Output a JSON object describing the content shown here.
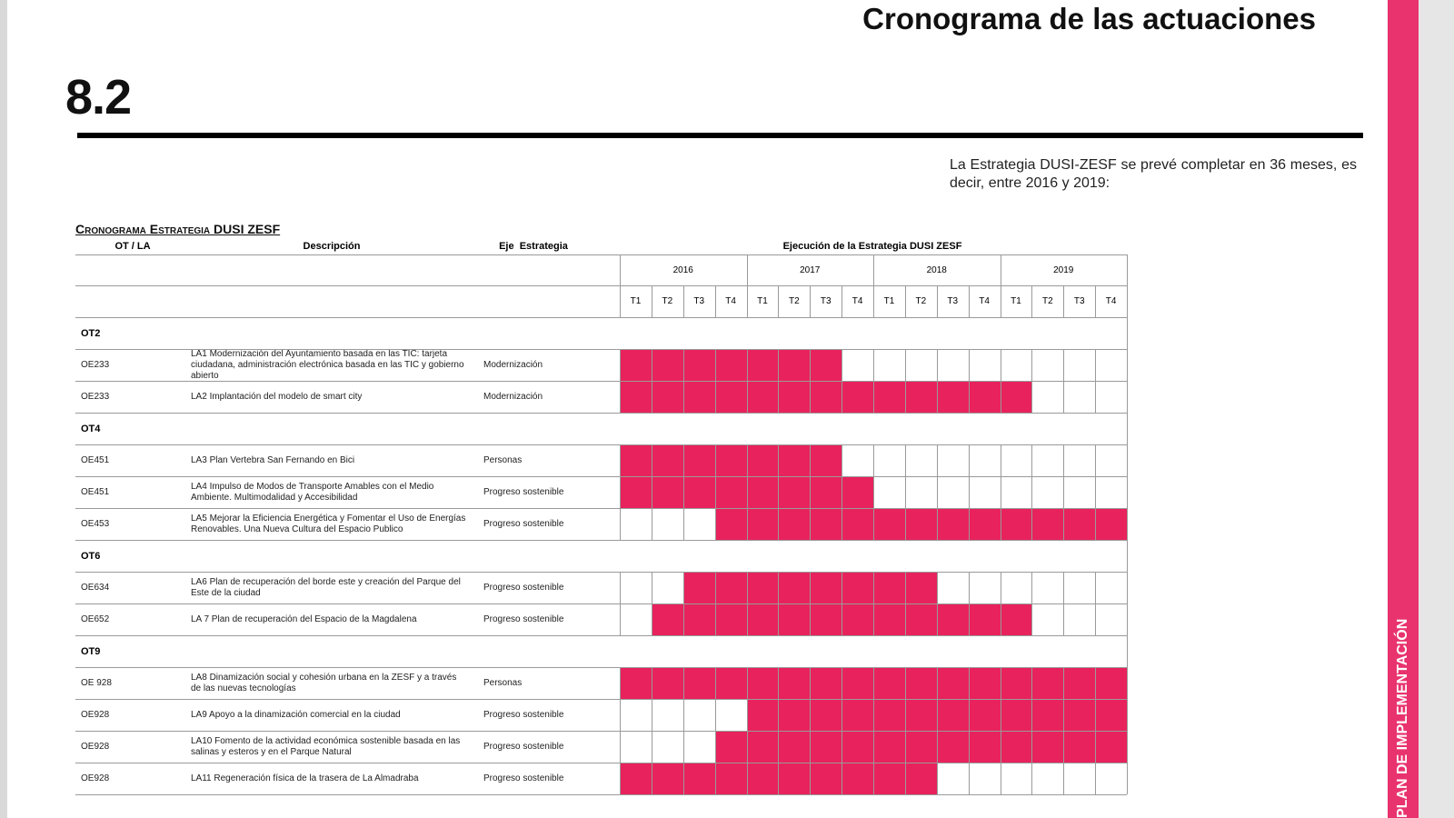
{
  "header": {
    "title": "Cronograma de las actuaciones",
    "section": "8.2",
    "side_label": "PLAN DE IMPLEMENTACIÓN"
  },
  "intro": "La Estrategia DUSI-ZESF se prevé completar en 36 meses, es decir, entre 2016 y 2019:",
  "table": {
    "title": "Cronograma Estrategia DUSI ZESF",
    "columns": [
      "OT / LA",
      "Descripción",
      "Eje  Estrategia",
      "Ejecución de la Estrategia DUSI ZESF"
    ],
    "years": [
      "2016",
      "2017",
      "2018",
      "2019"
    ],
    "quarters": [
      "T1",
      "T2",
      "T3",
      "T4"
    ],
    "groups": [
      {
        "name": "OT2",
        "rows": [
          {
            "code": "OE233",
            "description": "LA1 Modernización del Ayuntamiento basada en las TIC: tarjeta ciudadana, administración electrónica basada en las TIC y gobierno abierto",
            "axis": "Modernización",
            "start": 0,
            "end": 6
          },
          {
            "code": "OE233",
            "description": "LA2 Implantación del modelo de smart city",
            "axis": "Modernización",
            "start": 0,
            "end": 12
          }
        ]
      },
      {
        "name": "OT4",
        "rows": [
          {
            "code": "OE451",
            "description": "LA3 Plan Vertebra San Fernando en Bici",
            "axis": "Personas",
            "start": 0,
            "end": 6
          },
          {
            "code": "OE451",
            "description": "LA4 Impulso de Modos de Transporte Amables con el Medio Ambiente. Multimodalidad y Accesibilidad",
            "axis": "Progreso sostenible",
            "start": 0,
            "end": 7
          },
          {
            "code": "OE453",
            "description": "LA5 Mejorar la Eficiencia Energética y Fomentar el Uso de Energías Renovables. Una Nueva Cultura del Espacio Publico",
            "axis": "Progreso sostenible",
            "start": 3,
            "end": 15
          }
        ]
      },
      {
        "name": "OT6",
        "rows": [
          {
            "code": "OE634",
            "description": "LA6 Plan de recuperación del borde este y creación del Parque del Este de la ciudad",
            "axis": "Progreso sostenible",
            "start": 2,
            "end": 9
          },
          {
            "code": "OE652",
            "description": "LA 7 Plan de recuperación del Espacio de la Magdalena",
            "axis": "Progreso sostenible",
            "start": 1,
            "end": 12
          }
        ]
      },
      {
        "name": "OT9",
        "rows": [
          {
            "code": "OE 928",
            "description": "LA8 Dinamización social y cohesión urbana en la ZESF y a través de las nuevas tecnologías",
            "axis": "Personas",
            "start": 0,
            "end": 15
          },
          {
            "code": "OE928",
            "description": "LA9 Apoyo a la dinamización comercial en la ciudad",
            "axis": "Progreso sostenible",
            "start": 4,
            "end": 15
          },
          {
            "code": "OE928",
            "description": "LA10 Fomento de la actividad económica sostenible basada en las salinas y esteros y en el Parque Natural",
            "axis": "Progreso sostenible",
            "start": 3,
            "end": 15
          },
          {
            "code": "OE928",
            "description": "LA11 Regeneración física de la trasera de La Almadraba",
            "axis": "Progreso sostenible",
            "start": 0,
            "end": 9
          }
        ]
      }
    ]
  }
}
